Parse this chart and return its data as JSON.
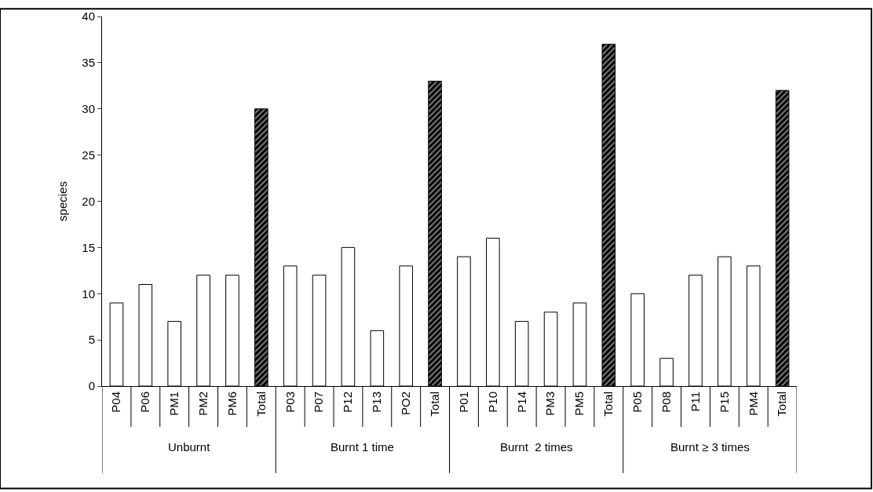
{
  "chart_data": {
    "type": "bar",
    "ylabel": "species",
    "categories": [
      "P04",
      "P06",
      "PM1",
      "PM2",
      "PM6",
      "Total",
      "P03",
      "P07",
      "P12",
      "P13",
      "PO2",
      "Total",
      "P01",
      "P10",
      "P14",
      "PM3",
      "PM5",
      "Total",
      "P05",
      "P08",
      "P11",
      "P15",
      "PM4",
      "Total"
    ],
    "values": [
      9,
      11,
      7,
      12,
      12,
      30,
      13,
      12,
      15,
      6,
      13,
      33,
      14,
      16,
      7,
      8,
      9,
      37,
      10,
      3,
      12,
      14,
      13,
      32
    ],
    "colors": [
      "#ffffff",
      "#ffffff",
      "#ffffff",
      "#ffffff",
      "#ffffff",
      "#000000",
      "#ffffff",
      "#ffffff",
      "#ffffff",
      "#ffffff",
      "#ffffff",
      "#000000",
      "#ffffff",
      "#ffffff",
      "#ffffff",
      "#ffffff",
      "#ffffff",
      "#000000",
      "#ffffff",
      "#ffffff",
      "#ffffff",
      "#ffffff",
      "#ffffff",
      "#000000"
    ],
    "annotations": [
      "Unburnt",
      "Burnt 1 time",
      "Burnt  2 times",
      "Burnt ≥ 3 times"
    ],
    "ylim": [
      0,
      40
    ],
    "yticks": [
      0,
      5,
      10,
      15,
      20,
      25,
      30,
      35,
      40
    ],
    "legend": false
  }
}
